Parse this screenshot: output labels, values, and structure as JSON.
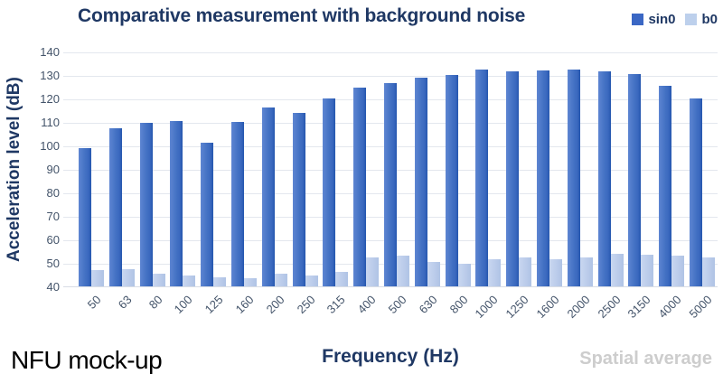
{
  "title": "Comparative measurement with background noise",
  "legend": [
    {
      "label": "sin0",
      "color": "#3A67C4"
    },
    {
      "label": "b0",
      "color": "#BDD0EC"
    }
  ],
  "footer": {
    "left": "NFU mock-up",
    "center": "Frequency (Hz)",
    "right": "Spatial average"
  },
  "colors": {
    "title_text": "#1F3864",
    "axis_text": "#44546A",
    "gridline": "#E3E7EE",
    "series_dark": "#4472C4",
    "series_light": "#BACBEA",
    "footer_muted": "#CDCDCD"
  },
  "chart_data": {
    "type": "bar",
    "title": "Comparative measurement with background noise",
    "xlabel": "Frequency (Hz)",
    "ylabel": "Acceleration level (dB)",
    "ylim": [
      40,
      140
    ],
    "yticks": [
      140,
      130,
      120,
      110,
      100,
      90,
      80,
      70,
      60,
      50,
      40
    ],
    "grid": true,
    "legend_position": "top-right",
    "categories": [
      "50",
      "63",
      "80",
      "100",
      "125",
      "160",
      "200",
      "250",
      "315",
      "400",
      "500",
      "630",
      "800",
      "1000",
      "1250",
      "1600",
      "2000",
      "2500",
      "3150",
      "4000",
      "5000"
    ],
    "series": [
      {
        "name": "sin0",
        "color": "#4472C4",
        "values": [
          99,
          107.5,
          109.5,
          110.5,
          101,
          110,
          116,
          114,
          120,
          124.5,
          126.5,
          129,
          130,
          132.5,
          131.5,
          132,
          132.5,
          131.5,
          130.5,
          125.5,
          120
        ]
      },
      {
        "name": "b0",
        "color": "#BACBEA",
        "values": [
          47,
          47.5,
          45.5,
          44.5,
          44,
          43.5,
          45.5,
          44.5,
          46,
          52.5,
          53,
          50.5,
          49.5,
          51.5,
          52.5,
          51.5,
          52.5,
          54,
          53.5,
          53,
          52.5
        ]
      }
    ]
  }
}
